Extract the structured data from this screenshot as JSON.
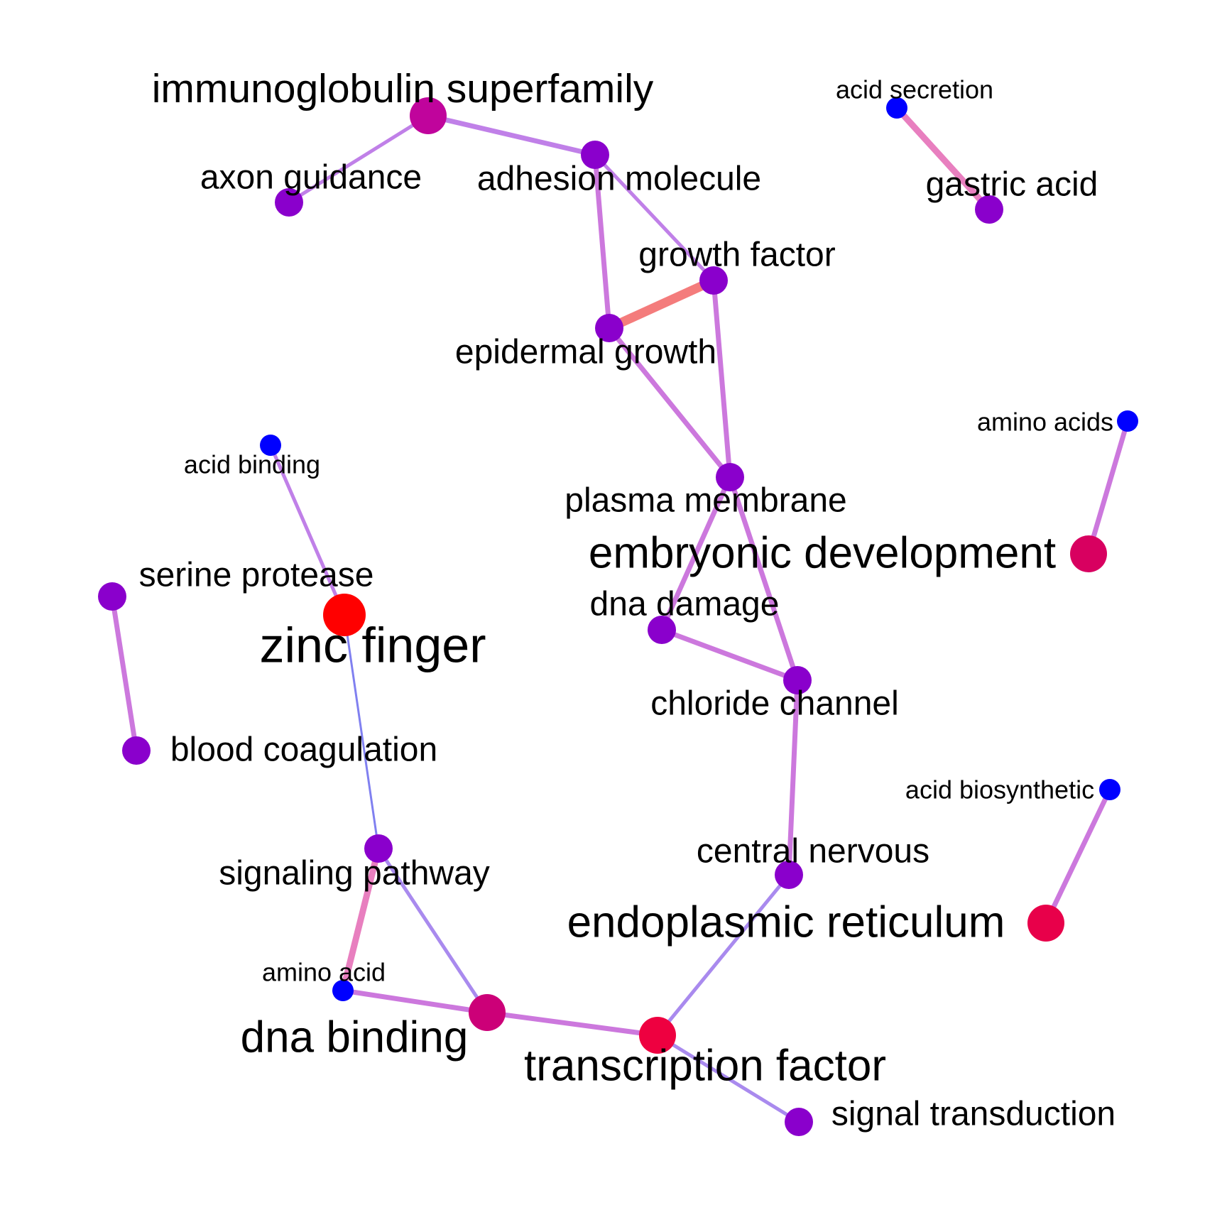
{
  "nodes": [
    {
      "id": "immunoglobulin-superfamily",
      "label": "immunoglobulin superfamily",
      "color": "#c0049c",
      "size": "large"
    },
    {
      "id": "axon-guidance",
      "label": "axon guidance",
      "color": "#8a00cc",
      "size": "medium"
    },
    {
      "id": "adhesion-molecule",
      "label": "adhesion molecule",
      "color": "#8a00cc",
      "size": "medium"
    },
    {
      "id": "acid-secretion",
      "label": "acid secretion",
      "color": "#0000ff",
      "size": "small"
    },
    {
      "id": "gastric-acid",
      "label": "gastric acid",
      "color": "#8a00cc",
      "size": "medium"
    },
    {
      "id": "growth-factor",
      "label": "growth factor",
      "color": "#8a00cc",
      "size": "medium"
    },
    {
      "id": "epidermal-growth",
      "label": "epidermal growth",
      "color": "#8a00cc",
      "size": "medium"
    },
    {
      "id": "amino-acids",
      "label": "amino acids",
      "color": "#0000ff",
      "size": "small"
    },
    {
      "id": "acid-binding",
      "label": "acid binding",
      "color": "#0000ff",
      "size": "small"
    },
    {
      "id": "plasma-membrane",
      "label": "plasma membrane",
      "color": "#8a00cc",
      "size": "medium"
    },
    {
      "id": "embryonic-development",
      "label": "embryonic development",
      "color": "#d80060",
      "size": "large"
    },
    {
      "id": "serine-protease",
      "label": "serine protease",
      "color": "#8a00cc",
      "size": "medium"
    },
    {
      "id": "zinc-finger",
      "label": "zinc finger",
      "color": "#ff0000",
      "size": "xlarge"
    },
    {
      "id": "dna-damage",
      "label": "dna damage",
      "color": "#8a00cc",
      "size": "medium"
    },
    {
      "id": "chloride-channel",
      "label": "chloride channel",
      "color": "#8a00cc",
      "size": "medium"
    },
    {
      "id": "blood-coagulation",
      "label": "blood coagulation",
      "color": "#8a00cc",
      "size": "medium"
    },
    {
      "id": "acid-biosynthetic",
      "label": "acid biosynthetic",
      "color": "#0000ff",
      "size": "small"
    },
    {
      "id": "signaling-pathway",
      "label": "signaling pathway",
      "color": "#8a00cc",
      "size": "medium"
    },
    {
      "id": "central-nervous",
      "label": "central nervous",
      "color": "#8a00cc",
      "size": "medium"
    },
    {
      "id": "endoplasmic-reticulum",
      "label": "endoplasmic reticulum",
      "color": "#e8004a",
      "size": "large"
    },
    {
      "id": "amino-acid",
      "label": "amino acid",
      "color": "#0000ff",
      "size": "small"
    },
    {
      "id": "dna-binding",
      "label": "dna binding",
      "color": "#cc0078",
      "size": "large"
    },
    {
      "id": "transcription-factor",
      "label": "transcription factor",
      "color": "#ee0040",
      "size": "large"
    },
    {
      "id": "signal-transduction",
      "label": "signal transduction",
      "color": "#8a00cc",
      "size": "medium"
    }
  ],
  "edges": [
    {
      "source": "immunoglobulin-superfamily",
      "target": "axon-guidance",
      "color": "#c080e8",
      "weight": "thin"
    },
    {
      "source": "immunoglobulin-superfamily",
      "target": "adhesion-molecule",
      "color": "#c080e8",
      "weight": "medium"
    },
    {
      "source": "adhesion-molecule",
      "target": "growth-factor",
      "color": "#c080e8",
      "weight": "thin"
    },
    {
      "source": "adhesion-molecule",
      "target": "epidermal-growth",
      "color": "#cc78dd",
      "weight": "medium"
    },
    {
      "source": "acid-secretion",
      "target": "gastric-acid",
      "color": "#e87fbf",
      "weight": "thick"
    },
    {
      "source": "growth-factor",
      "target": "epidermal-growth",
      "color": "#f47c7c",
      "weight": "xthick"
    },
    {
      "source": "growth-factor",
      "target": "plasma-membrane",
      "color": "#cc78dd",
      "weight": "medium"
    },
    {
      "source": "epidermal-growth",
      "target": "plasma-membrane",
      "color": "#cc78dd",
      "weight": "medium"
    },
    {
      "source": "amino-acids",
      "target": "embryonic-development",
      "color": "#cc78dd",
      "weight": "medium"
    },
    {
      "source": "plasma-membrane",
      "target": "dna-damage",
      "color": "#cc78dd",
      "weight": "medium"
    },
    {
      "source": "plasma-membrane",
      "target": "chloride-channel",
      "color": "#cc78dd",
      "weight": "medium"
    },
    {
      "source": "dna-damage",
      "target": "chloride-channel",
      "color": "#cc78dd",
      "weight": "medium"
    },
    {
      "source": "acid-binding",
      "target": "zinc-finger",
      "color": "#c080e8",
      "weight": "thin"
    },
    {
      "source": "serine-protease",
      "target": "blood-coagulation",
      "color": "#cc78dd",
      "weight": "medium"
    },
    {
      "source": "zinc-finger",
      "target": "signaling-pathway",
      "color": "#8080f0",
      "weight": "hair"
    },
    {
      "source": "chloride-channel",
      "target": "central-nervous",
      "color": "#cc78dd",
      "weight": "medium"
    },
    {
      "source": "acid-biosynthetic",
      "target": "endoplasmic-reticulum",
      "color": "#cc78dd",
      "weight": "medium"
    },
    {
      "source": "signaling-pathway",
      "target": "amino-acid",
      "color": "#e87fbf",
      "weight": "thick"
    },
    {
      "source": "signaling-pathway",
      "target": "dna-binding",
      "color": "#a98aee",
      "weight": "thin"
    },
    {
      "source": "central-nervous",
      "target": "transcription-factor",
      "color": "#a98aee",
      "weight": "thin"
    },
    {
      "source": "amino-acid",
      "target": "dna-binding",
      "color": "#cc78dd",
      "weight": "medium"
    },
    {
      "source": "dna-binding",
      "target": "transcription-factor",
      "color": "#cc78dd",
      "weight": "medium"
    },
    {
      "source": "transcription-factor",
      "target": "signal-transduction",
      "color": "#a98aee",
      "weight": "thin"
    }
  ]
}
